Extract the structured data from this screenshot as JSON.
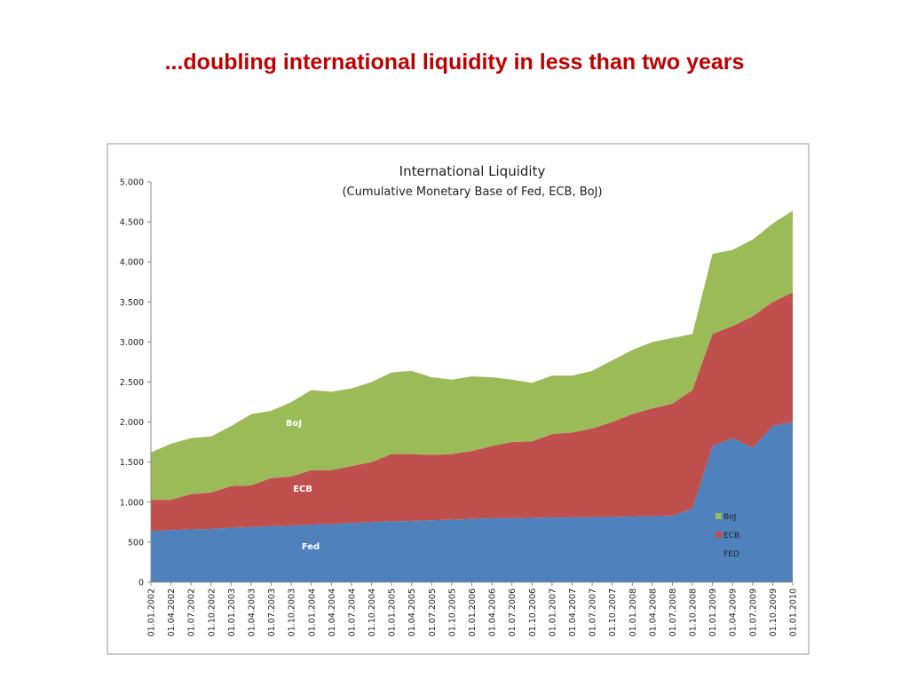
{
  "slide_title": "...doubling international liquidity in less than two years",
  "chart_data": {
    "type": "stacked_area",
    "title": "International Liquidity",
    "subtitle": "(Cumulative Monetary Base of Fed, ECB, BoJ)",
    "categories": [
      "01.01.2002",
      "01.04.2002",
      "01.07.2002",
      "01.10.2002",
      "01.01.2003",
      "01.04.2003",
      "01.07.2003",
      "01.10.2003",
      "01.01.2004",
      "01.04.2004",
      "01.07.2004",
      "01.10.2004",
      "01.01.2005",
      "01.04.2005",
      "01.07.2005",
      "01.10.2005",
      "01.01.2006",
      "01.04.2006",
      "01.07.2006",
      "01.10.2006",
      "01.01.2007",
      "01.04.2007",
      "01.07.2007",
      "01.10.2007",
      "01.01.2008",
      "01.04.2008",
      "01.07.2008",
      "01.10.2008",
      "01.01.2009",
      "01.04.2009",
      "01.07.2009",
      "01.10.2009",
      "01.01.2010"
    ],
    "series": [
      {
        "name": "FED",
        "color": "#4f81bd",
        "values": [
          640,
          650,
          660,
          665,
          680,
          690,
          700,
          705,
          720,
          725,
          740,
          750,
          760,
          765,
          775,
          780,
          790,
          800,
          800,
          805,
          810,
          810,
          815,
          815,
          820,
          825,
          830,
          920,
          1700,
          1800,
          1680,
          1950,
          2000
        ]
      },
      {
        "name": "ECB",
        "color": "#c0504d",
        "values": [
          390,
          380,
          440,
          455,
          520,
          520,
          600,
          615,
          680,
          675,
          710,
          750,
          840,
          835,
          815,
          820,
          850,
          900,
          950,
          955,
          1040,
          1060,
          1105,
          1185,
          1280,
          1345,
          1400,
          1480,
          1400,
          1400,
          1640,
          1550,
          1620
        ]
      },
      {
        "name": "BoJ",
        "color": "#9bbb59",
        "values": [
          590,
          700,
          700,
          700,
          750,
          890,
          840,
          930,
          1000,
          980,
          970,
          1000,
          1020,
          1040,
          970,
          930,
          930,
          860,
          780,
          730,
          730,
          710,
          720,
          770,
          800,
          830,
          820,
          700,
          1000,
          950,
          960,
          980,
          1020
        ]
      }
    ],
    "annotations": [
      "Fed",
      "ECB",
      "BoJ"
    ],
    "ylim": [
      0,
      5000
    ],
    "yticks": [
      0,
      500,
      {
        "value": 1000,
        "label": "1.000"
      },
      {
        "value": 1500,
        "label": "1.500"
      },
      {
        "value": 2000,
        "label": "2.000"
      },
      {
        "value": 2500,
        "label": "2.500"
      },
      {
        "value": 3000,
        "label": "3.000"
      },
      {
        "value": 3500,
        "label": "3.500"
      },
      {
        "value": 4000,
        "label": "4.000"
      },
      {
        "value": 4500,
        "label": "4.500"
      },
      {
        "value": 5000,
        "label": "5.000"
      }
    ],
    "legend": "lower right"
  }
}
